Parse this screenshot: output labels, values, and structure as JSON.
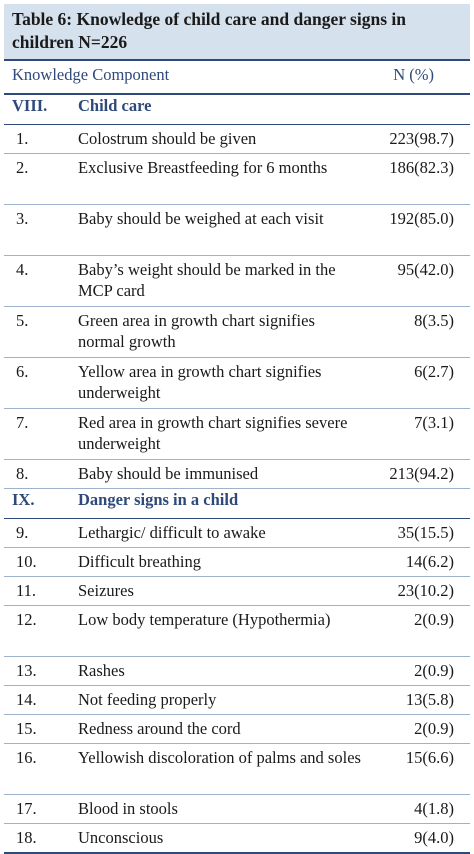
{
  "caption": "Table 6: Knowledge of child care and danger signs in children N=226",
  "header": {
    "component": "Knowledge Component",
    "n": "N (%)"
  },
  "sections": [
    {
      "roman": "VIII.",
      "title": "Child care",
      "rows": [
        {
          "no": "1.",
          "text": "Colostrum should be given",
          "n": "223(98.7)",
          "lines": 1
        },
        {
          "no": "2.",
          "text": "Exclusive Breastfeeding for 6 months",
          "n": "186(82.3)",
          "lines": 2
        },
        {
          "no": "3.",
          "text": "Baby should be weighed at each visit",
          "n": "192(85.0)",
          "lines": 2
        },
        {
          "no": "4.",
          "text": "Baby’s weight should be marked in the MCP card",
          "n": "95(42.0)",
          "lines": 2
        },
        {
          "no": "5.",
          "text": "Green area in growth chart signifies normal growth",
          "n": "8(3.5)",
          "lines": 2
        },
        {
          "no": "6.",
          "text": "Yellow area in growth chart signifies underweight",
          "n": "6(2.7)",
          "lines": 2
        },
        {
          "no": "7.",
          "text": "Red area in growth chart signifies severe underweight",
          "n": "7(3.1)",
          "lines": 2
        },
        {
          "no": "8.",
          "text": "Baby should be immunised",
          "n": "213(94.2)",
          "lines": 1
        }
      ]
    },
    {
      "roman": "IX.",
      "title": "Danger signs in a child",
      "rows": [
        {
          "no": "9.",
          "text": "Lethargic/ difficult to awake",
          "n": "35(15.5)",
          "lines": 1
        },
        {
          "no": "10.",
          "text": "Difficult breathing",
          "n": "14(6.2)",
          "lines": 1
        },
        {
          "no": "11.",
          "text": "Seizures",
          "n": "23(10.2)",
          "lines": 1
        },
        {
          "no": "12.",
          "text": "Low body temperature (Hypothermia)",
          "n": "2(0.9)",
          "lines": 2
        },
        {
          "no": "13.",
          "text": "Rashes",
          "n": "2(0.9)",
          "lines": 1
        },
        {
          "no": "14.",
          "text": "Not feeding properly",
          "n": "13(5.8)",
          "lines": 1
        },
        {
          "no": "15.",
          "text": "Redness around the cord",
          "n": "2(0.9)",
          "lines": 1
        },
        {
          "no": "16.",
          "text": "Yellowish discoloration of palms and soles",
          "n": "15(6.6)",
          "lines": 2
        },
        {
          "no": "17.",
          "text": "Blood in stools",
          "n": "4(1.8)",
          "lines": 1
        },
        {
          "no": "18.",
          "text": "Unconscious",
          "n": "9(4.0)",
          "lines": 1
        }
      ]
    }
  ],
  "colors": {
    "accent": "#2e4a7a",
    "caption_bg": "#d6e1ee",
    "row_rule": "#9fb2cc"
  }
}
